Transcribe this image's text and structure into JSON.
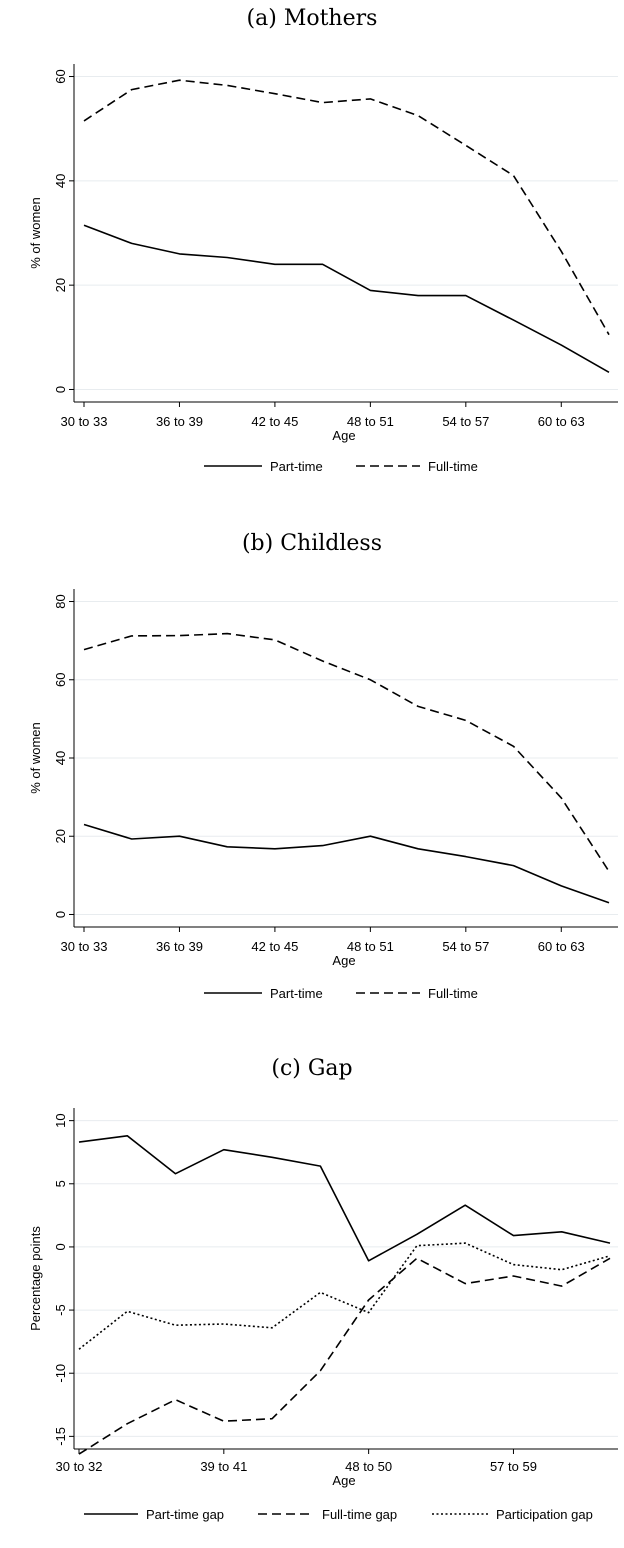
{
  "chart_data": [
    {
      "type": "line",
      "title": "(a) Mothers",
      "xlabel": "Age",
      "ylabel": "% of women",
      "ylim": [
        0,
        60
      ],
      "yticks": [
        0,
        20,
        40,
        60
      ],
      "x_tick_labels": [
        "30 to 33",
        "36 to 39",
        "42 to 45",
        "48 to 51",
        "54 to 57",
        "60 to 63"
      ],
      "x_tick_positions": [
        0,
        2,
        4,
        6,
        8,
        10
      ],
      "x": [
        0,
        1,
        2,
        3,
        4,
        5,
        6,
        7,
        8,
        9,
        10,
        11
      ],
      "grid": true,
      "legend_position": "bottom",
      "series": [
        {
          "name": "Part-time",
          "style": "solid",
          "values": [
            31.5,
            28,
            26,
            25.3,
            24,
            24,
            19,
            18,
            18,
            13.3,
            8.5,
            3.3
          ]
        },
        {
          "name": "Full-time",
          "style": "dashed",
          "values": [
            51.5,
            57.5,
            59.3,
            58.3,
            56.7,
            55,
            55.7,
            52.5,
            46.8,
            41,
            26.5,
            10.5
          ]
        }
      ]
    },
    {
      "type": "line",
      "title": "(b) Childless",
      "xlabel": "Age",
      "ylabel": "% of women",
      "ylim": [
        0,
        80
      ],
      "yticks": [
        0,
        20,
        40,
        60,
        80
      ],
      "x_tick_labels": [
        "30 to 33",
        "36 to 39",
        "42 to 45",
        "48 to 51",
        "54 to 57",
        "60 to 63"
      ],
      "x_tick_positions": [
        0,
        2,
        4,
        6,
        8,
        10
      ],
      "x": [
        0,
        1,
        2,
        3,
        4,
        5,
        6,
        7,
        8,
        9,
        10,
        11
      ],
      "grid": true,
      "legend_position": "bottom",
      "series": [
        {
          "name": "Part-time",
          "style": "solid",
          "values": [
            23,
            19.3,
            20,
            17.3,
            16.8,
            17.6,
            20,
            16.8,
            14.8,
            12.5,
            7.3,
            3
          ]
        },
        {
          "name": "Full-time",
          "style": "dashed",
          "values": [
            67.7,
            71.2,
            71.3,
            71.8,
            70.2,
            64.8,
            60,
            53.2,
            49.6,
            43,
            29.8,
            11
          ]
        }
      ]
    },
    {
      "type": "line",
      "title": "(c) Gap",
      "xlabel": "Age",
      "ylabel": "Percentage points",
      "ylim": [
        -15,
        10
      ],
      "yticks": [
        -15,
        -10,
        -5,
        0,
        5,
        10
      ],
      "x_tick_labels": [
        "30 to 32",
        "39 to 41",
        "48 to 50",
        "57 to 59"
      ],
      "x_tick_positions": [
        0,
        3,
        6,
        9
      ],
      "x": [
        0,
        1,
        2,
        3,
        4,
        5,
        6,
        7,
        8,
        9,
        10,
        11
      ],
      "grid": true,
      "legend_position": "bottom",
      "series": [
        {
          "name": "Part-time gap",
          "style": "solid",
          "values": [
            8.3,
            8.8,
            5.8,
            7.7,
            7.1,
            6.4,
            -1.1,
            1,
            3.3,
            0.9,
            1.2,
            0.3
          ]
        },
        {
          "name": "Full-time gap",
          "style": "dashed",
          "values": [
            -16.4,
            -14,
            -12.1,
            -13.8,
            -13.6,
            -9.8,
            -4.2,
            -0.9,
            -2.9,
            -2.3,
            -3.1,
            -0.9
          ]
        },
        {
          "name": "Participation gap",
          "style": "dotted",
          "values": [
            -8.1,
            -5.1,
            -6.2,
            -6.1,
            -6.4,
            -3.6,
            -5.2,
            0.1,
            0.3,
            -1.4,
            -1.8,
            -0.7
          ]
        }
      ]
    }
  ]
}
